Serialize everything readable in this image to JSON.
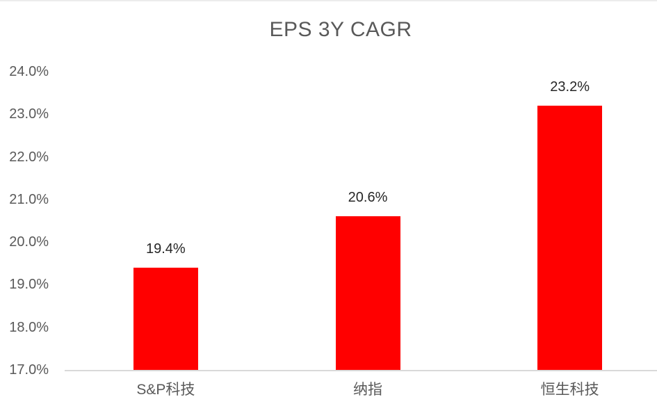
{
  "chart_data": {
    "type": "bar",
    "title": "EPS 3Y CAGR",
    "categories": [
      "S&P科技",
      "纳指",
      "恒生科技"
    ],
    "values": [
      19.4,
      20.6,
      23.2
    ],
    "data_labels": [
      "19.4%",
      "20.6%",
      "23.2%"
    ],
    "xlabel": "",
    "ylabel": "",
    "ylim": [
      17.0,
      24.0
    ],
    "ytick_step": 1.0,
    "ytick_labels": [
      "17.0%",
      "18.0%",
      "19.0%",
      "20.0%",
      "21.0%",
      "22.0%",
      "23.0%",
      "24.0%"
    ],
    "grid": false,
    "legend": "none",
    "bar_color": "#FF0000",
    "axis_line_color": "#D9D9D9",
    "title_color": "#595959",
    "axis_text_color": "#595959",
    "data_label_color": "#262626"
  }
}
